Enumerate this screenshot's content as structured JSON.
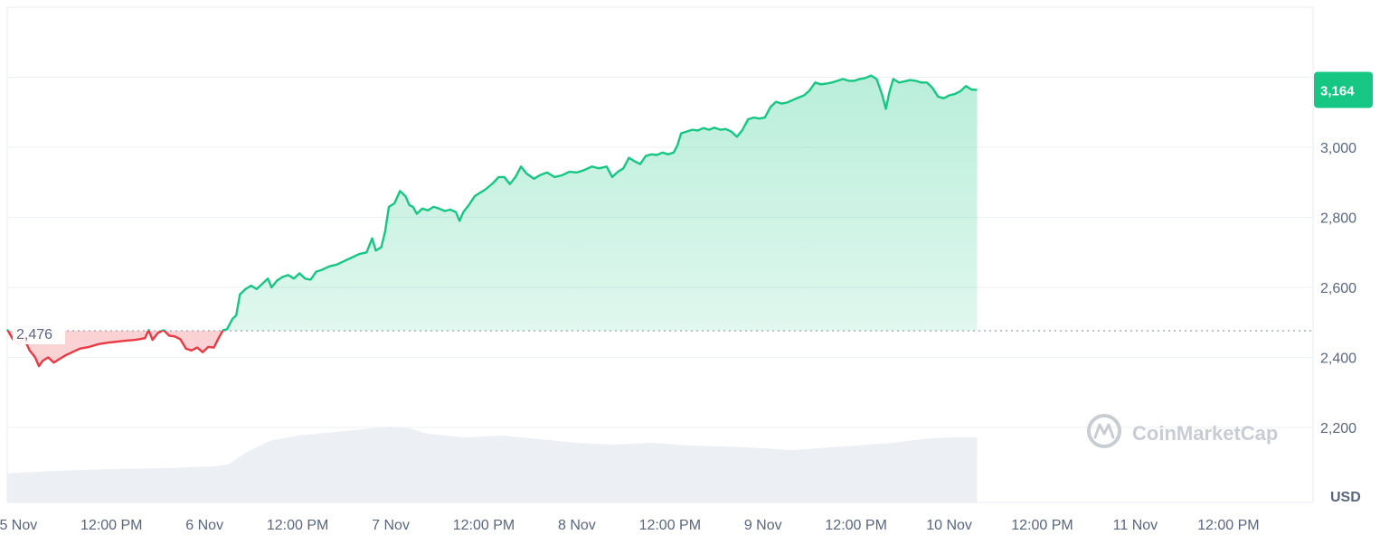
{
  "chart_data": {
    "type": "area",
    "currency_label": "USD",
    "watermark": "CoinMarketCap",
    "baseline": {
      "value": 2476,
      "label": "2,476"
    },
    "last_price": {
      "value": 3164,
      "label": "3,164"
    },
    "ylim": [
      2000,
      3200
    ],
    "y_ticks": [
      {
        "value": 2200,
        "label": "2,200"
      },
      {
        "value": 2400,
        "label": "2,400"
      },
      {
        "value": 2600,
        "label": "2,600"
      },
      {
        "value": 2800,
        "label": "2,800"
      },
      {
        "value": 3000,
        "label": "3,000"
      }
    ],
    "x_ticks": [
      {
        "t": 5.0,
        "label": "5 Nov"
      },
      {
        "t": 5.5,
        "label": "12:00 PM"
      },
      {
        "t": 6.0,
        "label": "6 Nov"
      },
      {
        "t": 6.5,
        "label": "12:00 PM"
      },
      {
        "t": 7.0,
        "label": "7 Nov"
      },
      {
        "t": 7.5,
        "label": "12:00 PM"
      },
      {
        "t": 8.0,
        "label": "8 Nov"
      },
      {
        "t": 8.5,
        "label": "12:00 PM"
      },
      {
        "t": 9.0,
        "label": "9 Nov"
      },
      {
        "t": 9.5,
        "label": "12:00 PM"
      },
      {
        "t": 10.0,
        "label": "10 Nov"
      },
      {
        "t": 10.5,
        "label": "12:00 PM"
      },
      {
        "t": 11.0,
        "label": "11 Nov"
      },
      {
        "t": 11.5,
        "label": "12:00 PM"
      }
    ],
    "xlim": [
      4.94,
      11.955
    ],
    "price_series": [
      [
        4.94,
        2480
      ],
      [
        4.97,
        2452
      ],
      [
        5.0,
        2440
      ],
      [
        5.03,
        2455
      ],
      [
        5.06,
        2420
      ],
      [
        5.09,
        2400
      ],
      [
        5.11,
        2375
      ],
      [
        5.13,
        2390
      ],
      [
        5.16,
        2400
      ],
      [
        5.19,
        2385
      ],
      [
        5.22,
        2395
      ],
      [
        5.25,
        2405
      ],
      [
        5.29,
        2415
      ],
      [
        5.33,
        2425
      ],
      [
        5.38,
        2430
      ],
      [
        5.43,
        2438
      ],
      [
        5.48,
        2442
      ],
      [
        5.53,
        2445
      ],
      [
        5.58,
        2448
      ],
      [
        5.63,
        2450
      ],
      [
        5.68,
        2455
      ],
      [
        5.7,
        2478
      ],
      [
        5.72,
        2450
      ],
      [
        5.75,
        2470
      ],
      [
        5.78,
        2478
      ],
      [
        5.81,
        2462
      ],
      [
        5.84,
        2460
      ],
      [
        5.87,
        2452
      ],
      [
        5.9,
        2425
      ],
      [
        5.93,
        2420
      ],
      [
        5.96,
        2428
      ],
      [
        5.99,
        2415
      ],
      [
        6.02,
        2430
      ],
      [
        6.05,
        2428
      ],
      [
        6.08,
        2460
      ],
      [
        6.1,
        2478
      ],
      [
        6.12,
        2480
      ],
      [
        6.15,
        2510
      ],
      [
        6.17,
        2520
      ],
      [
        6.19,
        2580
      ],
      [
        6.22,
        2595
      ],
      [
        6.25,
        2605
      ],
      [
        6.28,
        2595
      ],
      [
        6.31,
        2610
      ],
      [
        6.34,
        2625
      ],
      [
        6.36,
        2600
      ],
      [
        6.39,
        2620
      ],
      [
        6.42,
        2630
      ],
      [
        6.45,
        2635
      ],
      [
        6.48,
        2625
      ],
      [
        6.51,
        2640
      ],
      [
        6.54,
        2625
      ],
      [
        6.57,
        2622
      ],
      [
        6.6,
        2645
      ],
      [
        6.63,
        2650
      ],
      [
        6.67,
        2660
      ],
      [
        6.71,
        2665
      ],
      [
        6.75,
        2675
      ],
      [
        6.79,
        2685
      ],
      [
        6.83,
        2695
      ],
      [
        6.87,
        2700
      ],
      [
        6.9,
        2740
      ],
      [
        6.92,
        2705
      ],
      [
        6.95,
        2715
      ],
      [
        6.97,
        2760
      ],
      [
        6.99,
        2830
      ],
      [
        7.02,
        2840
      ],
      [
        7.05,
        2875
      ],
      [
        7.08,
        2860
      ],
      [
        7.1,
        2835
      ],
      [
        7.12,
        2830
      ],
      [
        7.14,
        2810
      ],
      [
        7.17,
        2825
      ],
      [
        7.2,
        2820
      ],
      [
        7.23,
        2830
      ],
      [
        7.26,
        2825
      ],
      [
        7.29,
        2818
      ],
      [
        7.32,
        2822
      ],
      [
        7.35,
        2815
      ],
      [
        7.37,
        2790
      ],
      [
        7.39,
        2815
      ],
      [
        7.42,
        2835
      ],
      [
        7.45,
        2860
      ],
      [
        7.48,
        2870
      ],
      [
        7.51,
        2880
      ],
      [
        7.55,
        2898
      ],
      [
        7.58,
        2915
      ],
      [
        7.61,
        2915
      ],
      [
        7.64,
        2895
      ],
      [
        7.67,
        2915
      ],
      [
        7.7,
        2945
      ],
      [
        7.73,
        2925
      ],
      [
        7.77,
        2910
      ],
      [
        7.8,
        2920
      ],
      [
        7.84,
        2928
      ],
      [
        7.88,
        2915
      ],
      [
        7.92,
        2920
      ],
      [
        7.96,
        2930
      ],
      [
        8.0,
        2928
      ],
      [
        8.04,
        2935
      ],
      [
        8.08,
        2945
      ],
      [
        8.12,
        2940
      ],
      [
        8.16,
        2945
      ],
      [
        8.19,
        2915
      ],
      [
        8.22,
        2930
      ],
      [
        8.25,
        2940
      ],
      [
        8.28,
        2970
      ],
      [
        8.31,
        2960
      ],
      [
        8.34,
        2952
      ],
      [
        8.37,
        2975
      ],
      [
        8.4,
        2980
      ],
      [
        8.43,
        2978
      ],
      [
        8.46,
        2985
      ],
      [
        8.49,
        2980
      ],
      [
        8.52,
        2985
      ],
      [
        8.54,
        3005
      ],
      [
        8.56,
        3040
      ],
      [
        8.59,
        3045
      ],
      [
        8.62,
        3050
      ],
      [
        8.65,
        3048
      ],
      [
        8.68,
        3055
      ],
      [
        8.71,
        3050
      ],
      [
        8.74,
        3056
      ],
      [
        8.77,
        3050
      ],
      [
        8.8,
        3052
      ],
      [
        8.83,
        3045
      ],
      [
        8.86,
        3030
      ],
      [
        8.89,
        3050
      ],
      [
        8.92,
        3080
      ],
      [
        8.95,
        3085
      ],
      [
        8.98,
        3082
      ],
      [
        9.01,
        3085
      ],
      [
        9.04,
        3115
      ],
      [
        9.07,
        3130
      ],
      [
        9.1,
        3125
      ],
      [
        9.13,
        3128
      ],
      [
        9.16,
        3135
      ],
      [
        9.19,
        3142
      ],
      [
        9.22,
        3148
      ],
      [
        9.25,
        3162
      ],
      [
        9.28,
        3185
      ],
      [
        9.31,
        3180
      ],
      [
        9.34,
        3182
      ],
      [
        9.37,
        3185
      ],
      [
        9.4,
        3190
      ],
      [
        9.43,
        3195
      ],
      [
        9.46,
        3190
      ],
      [
        9.49,
        3190
      ],
      [
        9.52,
        3195
      ],
      [
        9.55,
        3198
      ],
      [
        9.58,
        3205
      ],
      [
        9.61,
        3195
      ],
      [
        9.64,
        3150
      ],
      [
        9.66,
        3110
      ],
      [
        9.68,
        3160
      ],
      [
        9.7,
        3195
      ],
      [
        9.73,
        3185
      ],
      [
        9.76,
        3188
      ],
      [
        9.79,
        3192
      ],
      [
        9.82,
        3190
      ],
      [
        9.85,
        3185
      ],
      [
        9.88,
        3185
      ],
      [
        9.91,
        3170
      ],
      [
        9.94,
        3145
      ],
      [
        9.97,
        3140
      ],
      [
        10.0,
        3148
      ],
      [
        10.03,
        3152
      ],
      [
        10.06,
        3160
      ],
      [
        10.09,
        3175
      ],
      [
        10.12,
        3165
      ],
      [
        10.15,
        3164
      ]
    ],
    "volume_series": [
      [
        4.94,
        32
      ],
      [
        5.2,
        35
      ],
      [
        5.5,
        37
      ],
      [
        5.8,
        38
      ],
      [
        6.05,
        40
      ],
      [
        6.13,
        42
      ],
      [
        6.22,
        55
      ],
      [
        6.35,
        68
      ],
      [
        6.5,
        74
      ],
      [
        6.7,
        78
      ],
      [
        6.9,
        82
      ],
      [
        7.0,
        84
      ],
      [
        7.1,
        82
      ],
      [
        7.2,
        76
      ],
      [
        7.4,
        72
      ],
      [
        7.6,
        74
      ],
      [
        7.8,
        70
      ],
      [
        8.0,
        66
      ],
      [
        8.2,
        64
      ],
      [
        8.4,
        66
      ],
      [
        8.6,
        63
      ],
      [
        8.8,
        62
      ],
      [
        9.0,
        60
      ],
      [
        9.15,
        58
      ],
      [
        9.3,
        60
      ],
      [
        9.5,
        63
      ],
      [
        9.7,
        66
      ],
      [
        9.85,
        70
      ],
      [
        10.0,
        72
      ],
      [
        10.15,
        72
      ]
    ]
  }
}
